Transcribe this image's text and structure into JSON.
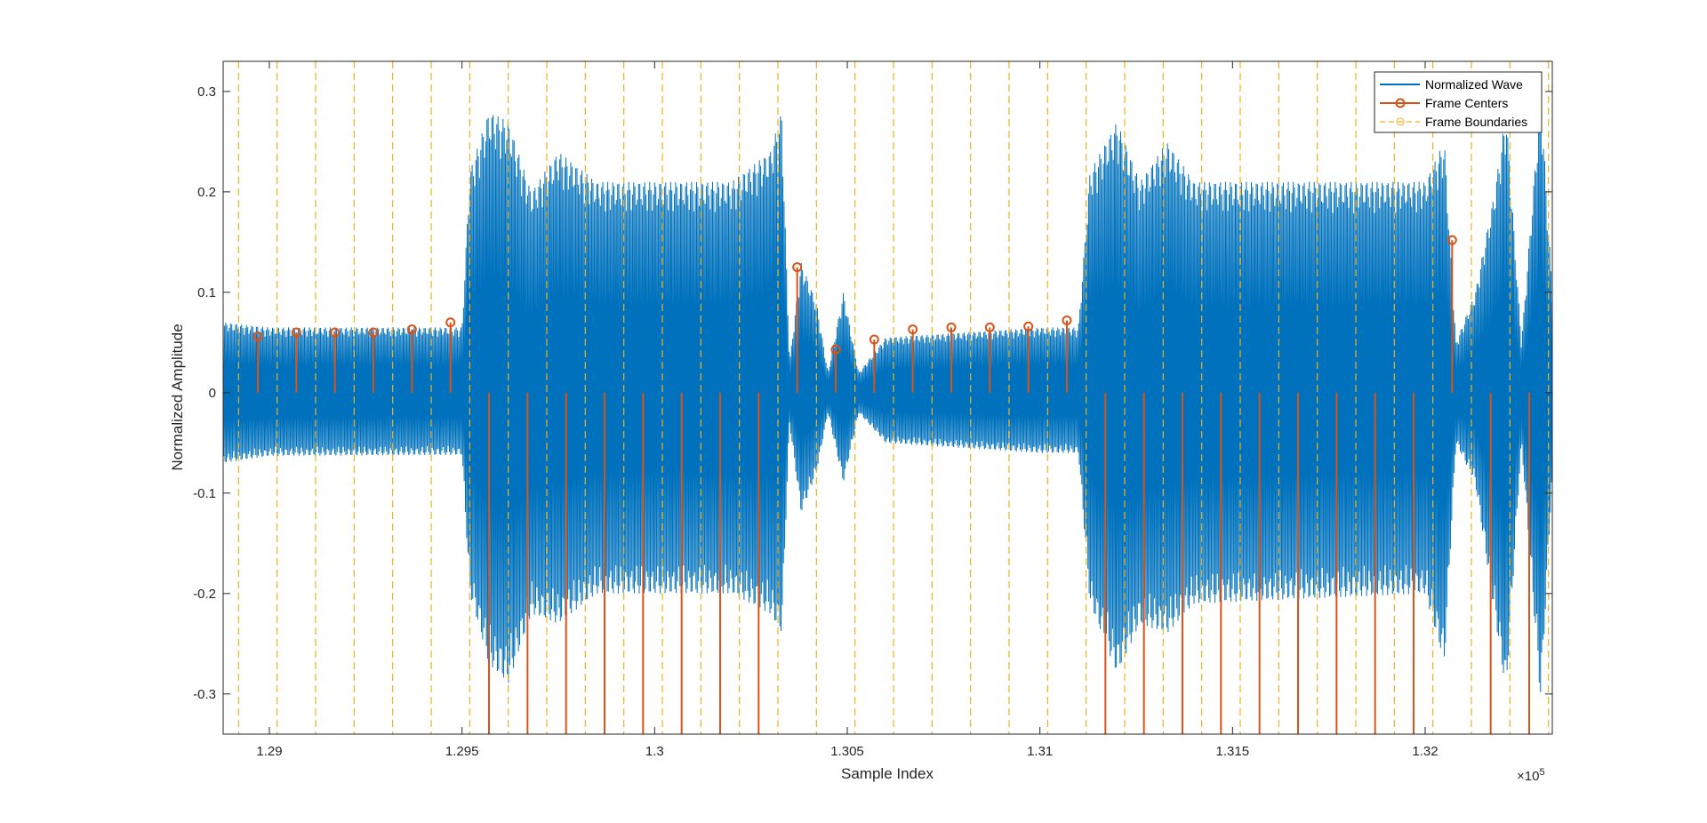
{
  "chart_data": {
    "type": "line",
    "xlabel": "Sample Index",
    "ylabel": "Normalized Amplitude",
    "x_exponent_label": "×10",
    "x_exponent_power": "5",
    "xlim": [
      128880,
      132330
    ],
    "ylim": [
      -0.34,
      0.33
    ],
    "x_ticks": [
      129000,
      129500,
      130000,
      130500,
      131000,
      131500,
      132000
    ],
    "x_tick_labels": [
      "1.29",
      "1.295",
      "1.3",
      "1.305",
      "1.31",
      "1.315",
      "1.32"
    ],
    "y_ticks": [
      -0.3,
      -0.2,
      -0.1,
      0,
      0.1,
      0.2,
      0.3
    ],
    "y_tick_labels": [
      "-0.3",
      "-0.2",
      "-0.1",
      "0",
      "0.1",
      "0.2",
      "0.3"
    ],
    "grid": false,
    "legend_position": "top-right",
    "colors": {
      "wave": "#0072BD",
      "centers": "#D95319",
      "boundaries": "#EDB120"
    },
    "series": [
      {
        "name": "Normalized Wave",
        "style": "line",
        "envelope": [
          {
            "x": 128880,
            "pos": 0.07,
            "neg": -0.07
          },
          {
            "x": 129000,
            "pos": 0.065,
            "neg": -0.063
          },
          {
            "x": 129500,
            "pos": 0.065,
            "neg": -0.062
          },
          {
            "x": 129520,
            "pos": 0.22,
            "neg": -0.2
          },
          {
            "x": 129570,
            "pos": 0.28,
            "neg": -0.27
          },
          {
            "x": 129620,
            "pos": 0.27,
            "neg": -0.29
          },
          {
            "x": 129680,
            "pos": 0.2,
            "neg": -0.22
          },
          {
            "x": 129750,
            "pos": 0.24,
            "neg": -0.23
          },
          {
            "x": 129850,
            "pos": 0.21,
            "neg": -0.2
          },
          {
            "x": 130000,
            "pos": 0.21,
            "neg": -0.2
          },
          {
            "x": 130200,
            "pos": 0.21,
            "neg": -0.2
          },
          {
            "x": 130300,
            "pos": 0.24,
            "neg": -0.22
          },
          {
            "x": 130330,
            "pos": 0.28,
            "neg": -0.24
          },
          {
            "x": 130350,
            "pos": 0.03,
            "neg": -0.03
          },
          {
            "x": 130380,
            "pos": 0.13,
            "neg": -0.12
          },
          {
            "x": 130420,
            "pos": 0.09,
            "neg": -0.08
          },
          {
            "x": 130450,
            "pos": 0.02,
            "neg": -0.02
          },
          {
            "x": 130490,
            "pos": 0.1,
            "neg": -0.09
          },
          {
            "x": 130530,
            "pos": 0.02,
            "neg": -0.02
          },
          {
            "x": 130600,
            "pos": 0.055,
            "neg": -0.05
          },
          {
            "x": 131000,
            "pos": 0.065,
            "neg": -0.06
          },
          {
            "x": 131100,
            "pos": 0.065,
            "neg": -0.06
          },
          {
            "x": 131130,
            "pos": 0.22,
            "neg": -0.21
          },
          {
            "x": 131200,
            "pos": 0.27,
            "neg": -0.28
          },
          {
            "x": 131260,
            "pos": 0.21,
            "neg": -0.23
          },
          {
            "x": 131330,
            "pos": 0.25,
            "neg": -0.24
          },
          {
            "x": 131400,
            "pos": 0.21,
            "neg": -0.21
          },
          {
            "x": 132000,
            "pos": 0.21,
            "neg": -0.2
          },
          {
            "x": 132050,
            "pos": 0.25,
            "neg": -0.27
          },
          {
            "x": 132080,
            "pos": 0.05,
            "neg": -0.05
          },
          {
            "x": 132130,
            "pos": 0.1,
            "neg": -0.09
          },
          {
            "x": 132180,
            "pos": 0.2,
            "neg": -0.22
          },
          {
            "x": 132210,
            "pos": 0.28,
            "neg": -0.3
          },
          {
            "x": 132250,
            "pos": 0.05,
            "neg": -0.05
          },
          {
            "x": 132300,
            "pos": 0.3,
            "neg": -0.31
          },
          {
            "x": 132330,
            "pos": 0.1,
            "neg": -0.08
          }
        ]
      },
      {
        "name": "Frame Centers",
        "style": "stem",
        "x": [
          128970,
          129070,
          129170,
          129270,
          129370,
          129470,
          129570,
          129670,
          129770,
          129870,
          129970,
          130070,
          130170,
          130270,
          130370,
          130470,
          130570,
          130670,
          130770,
          130870,
          130970,
          131070,
          131170,
          131270,
          131370,
          131470,
          131570,
          131670,
          131770,
          131870,
          131970,
          132070,
          132170,
          132270
        ],
        "y": [
          0.056,
          0.06,
          0.06,
          0.06,
          0.063,
          0.07,
          -0.34,
          -0.34,
          -0.34,
          -0.34,
          -0.34,
          -0.34,
          -0.34,
          -0.34,
          0.125,
          0.043,
          0.053,
          0.063,
          0.065,
          0.065,
          0.066,
          0.072,
          -0.34,
          -0.34,
          -0.34,
          -0.34,
          -0.34,
          -0.34,
          -0.34,
          -0.34,
          -0.34,
          0.152,
          -0.34,
          -0.34
        ]
      },
      {
        "name": "Frame Boundaries",
        "style": "vline",
        "x": [
          128920,
          129020,
          129120,
          129220,
          129320,
          129420,
          129520,
          129620,
          129720,
          129820,
          129920,
          130020,
          130120,
          130220,
          130320,
          130420,
          130520,
          130620,
          130720,
          130820,
          130920,
          131020,
          131120,
          131220,
          131320,
          131420,
          131520,
          131620,
          131720,
          131820,
          131920,
          132020,
          132120,
          132220,
          132320
        ]
      }
    ]
  }
}
